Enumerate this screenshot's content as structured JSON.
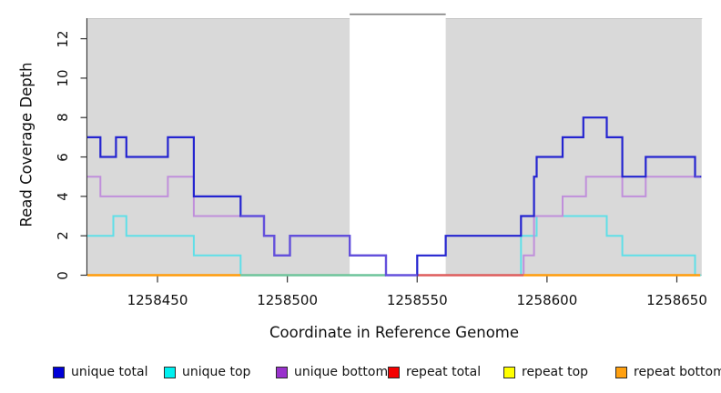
{
  "figure": {
    "x_axis_title": "Coordinate in Reference Genome",
    "y_axis_title": "Read Coverage Depth"
  },
  "chart_data": {
    "type": "line",
    "subtype": "step-coverage",
    "title": "",
    "xlabel": "Coordinate in Reference Genome",
    "ylabel": "Read Coverage Depth",
    "xlim": [
      1258423,
      1258659
    ],
    "ylim": [
      0,
      13.25
    ],
    "x_ticks": [
      1258450,
      1258500,
      1258550,
      1258600,
      1258650
    ],
    "y_ticks": [
      0,
      2,
      4,
      6,
      8,
      10,
      12
    ],
    "grid": false,
    "legend_position": "bottom",
    "background": {
      "panel_color": "#d9d9d9",
      "white_band_x": [
        1258524,
        1258561
      ],
      "band_border_color": "#7d7d7d"
    },
    "series": [
      {
        "name": "unique total",
        "swatch_color": "#0000d8",
        "line_color": "#2424d0",
        "steps": [
          [
            1258423,
            7
          ],
          [
            1258428,
            6
          ],
          [
            1258434,
            7
          ],
          [
            1258438,
            6
          ],
          [
            1258454,
            7
          ],
          [
            1258464,
            4
          ],
          [
            1258482,
            3
          ],
          [
            1258491,
            2
          ],
          [
            1258495,
            1
          ],
          [
            1258501,
            2
          ],
          [
            1258524,
            1
          ],
          [
            1258538,
            0
          ],
          [
            1258550,
            1
          ],
          [
            1258561,
            2
          ],
          [
            1258590,
            3
          ],
          [
            1258595,
            5
          ],
          [
            1258596,
            6
          ],
          [
            1258606,
            7
          ],
          [
            1258614,
            8
          ],
          [
            1258623,
            7
          ],
          [
            1258629,
            5
          ],
          [
            1258638,
            6
          ],
          [
            1258657,
            5
          ]
        ]
      },
      {
        "name": "unique top",
        "swatch_color": "#00f0f0",
        "line_color": "#5fdfe8",
        "steps": [
          [
            1258423,
            2
          ],
          [
            1258433,
            3
          ],
          [
            1258438,
            2
          ],
          [
            1258464,
            1
          ],
          [
            1258482,
            0
          ],
          [
            1258590,
            2
          ],
          [
            1258596,
            3
          ],
          [
            1258623,
            2
          ],
          [
            1258629,
            1
          ],
          [
            1258657,
            0
          ]
        ]
      },
      {
        "name": "unique bottom",
        "swatch_color": "#9932cc",
        "line_color": "#c08fdb",
        "steps": [
          [
            1258423,
            5
          ],
          [
            1258428,
            4
          ],
          [
            1258454,
            5
          ],
          [
            1258464,
            3
          ],
          [
            1258491,
            2
          ],
          [
            1258495,
            1
          ],
          [
            1258501,
            2
          ],
          [
            1258524,
            1
          ],
          [
            1258538,
            0
          ],
          [
            1258591,
            1
          ],
          [
            1258595,
            3
          ],
          [
            1258606,
            4
          ],
          [
            1258615,
            5
          ],
          [
            1258629,
            4
          ],
          [
            1258638,
            5
          ]
        ]
      },
      {
        "name": "repeat total",
        "swatch_color": "#f40000",
        "line_color": "#de5c5c",
        "steps": [
          [
            1258423,
            0
          ]
        ]
      },
      {
        "name": "repeat top",
        "swatch_color": "#ffff00",
        "line_color": "#ffff00",
        "steps": [
          [
            1258423,
            0
          ]
        ]
      },
      {
        "name": "repeat bottom",
        "swatch_color": "#ffa010",
        "line_color": "#ff9c0a",
        "steps": [
          [
            1258423,
            0
          ]
        ]
      }
    ],
    "zero_visible_segments": [
      {
        "from": 1258423,
        "to": 1258482,
        "color": "#ff9c0a",
        "series": "repeat bottom"
      },
      {
        "from": 1258482,
        "to": 1258538,
        "color": "#6ec49b",
        "series": "unique top"
      },
      {
        "from": 1258550,
        "to": 1258591,
        "color": "#de5c5c",
        "series": "repeat total"
      },
      {
        "from": 1258591,
        "to": 1258659,
        "color": "#ff9c0a",
        "series": "repeat bottom"
      }
    ],
    "overlap_blue_purple": {
      "color": "#6450dc",
      "segments": [
        {
          "steps": [
            [
              1258482,
              3
            ],
            [
              1258491,
              2
            ],
            [
              1258495,
              1
            ],
            [
              1258501,
              2
            ],
            [
              1258524,
              1
            ],
            [
              1258538,
              0
            ]
          ],
          "to": 1258550
        },
        {
          "steps": [
            [
              1258657,
              5
            ]
          ],
          "to": 1258659
        }
      ]
    }
  }
}
